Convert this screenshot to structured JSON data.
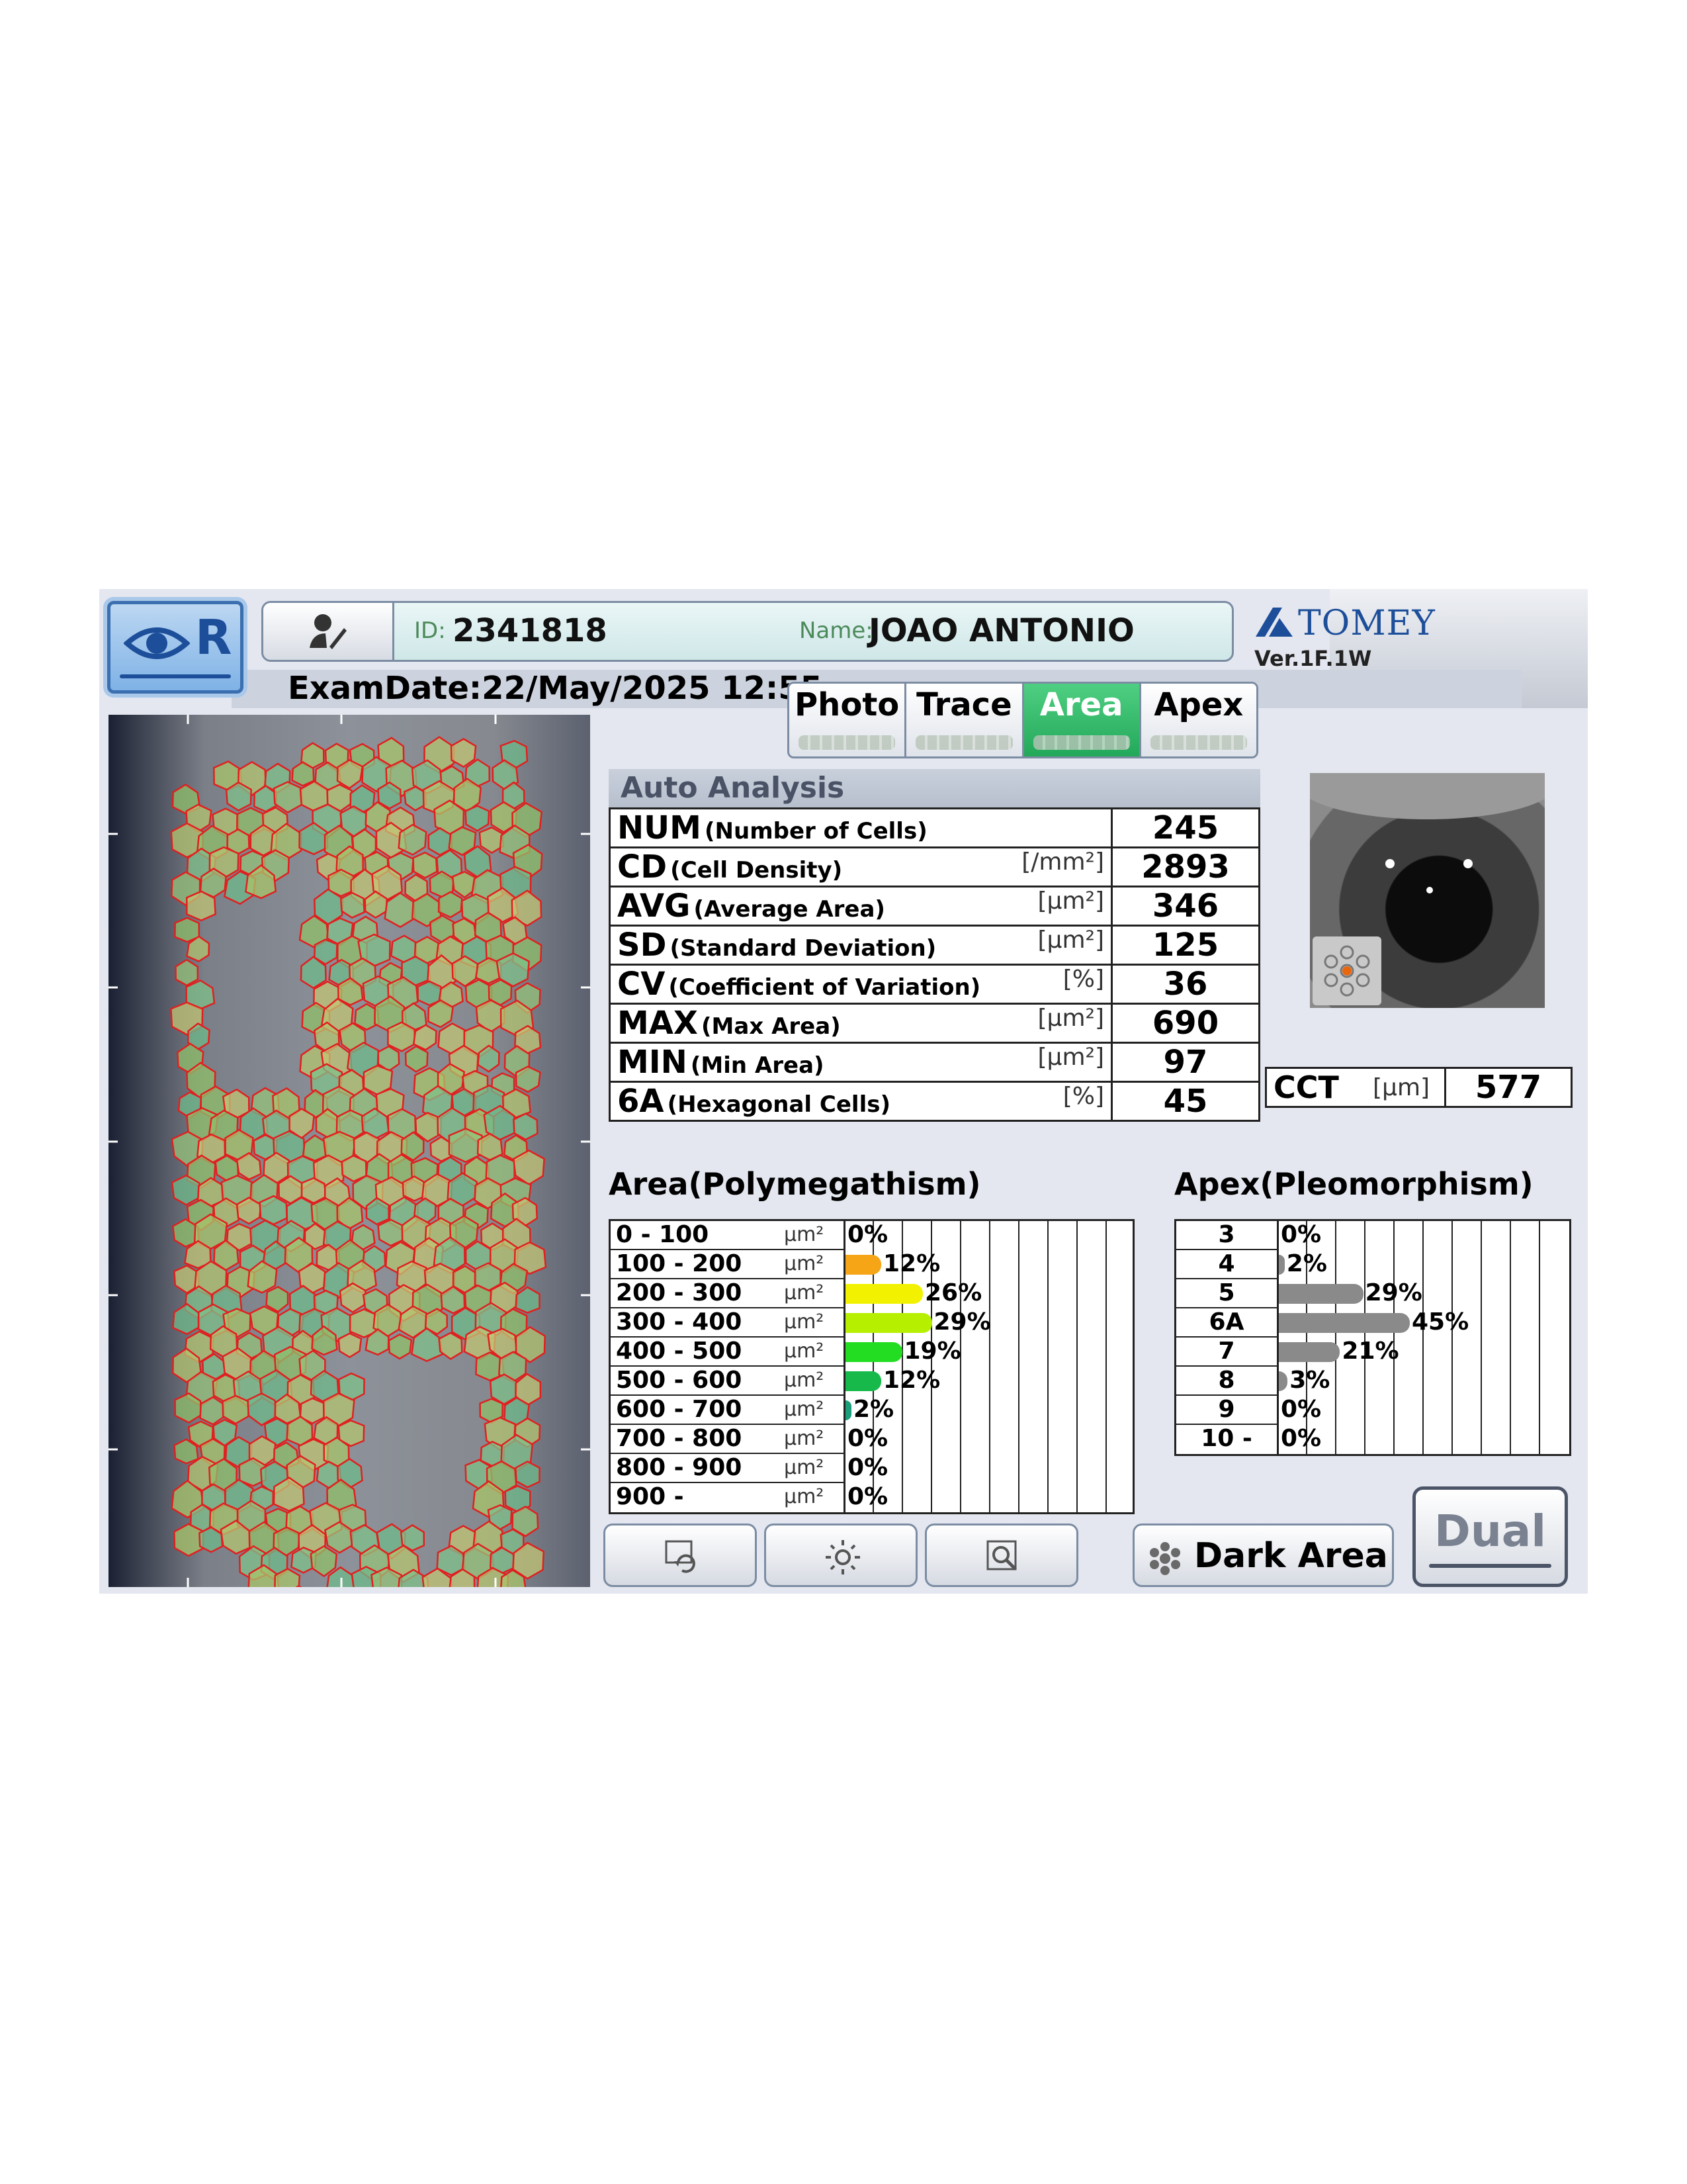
{
  "header": {
    "eye_label": "R",
    "id_label": "ID:",
    "id_value": "2341818",
    "name_label": "Name:",
    "name_value": "JOAO ANTONIO",
    "brand": "TOMEY",
    "version": "Ver.1F.1W",
    "exam_date": "ExamDate:22/May/2025 12:55"
  },
  "tabs": [
    {
      "label": "Photo",
      "active": false
    },
    {
      "label": "Trace",
      "active": false
    },
    {
      "label": "Area",
      "active": true
    },
    {
      "label": "Apex",
      "active": false
    }
  ],
  "auto_analysis": {
    "title": "Auto Analysis",
    "rows": [
      {
        "abbr": "NUM",
        "full": "(Number of Cells)",
        "unit": "",
        "value": "245"
      },
      {
        "abbr": "CD",
        "full": "(Cell Density)",
        "unit": "[/mm²]",
        "value": "2893"
      },
      {
        "abbr": "AVG",
        "full": "(Average Area)",
        "unit": "[μm²]",
        "value": "346"
      },
      {
        "abbr": "SD",
        "full": "(Standard Deviation)",
        "unit": "[μm²]",
        "value": "125"
      },
      {
        "abbr": "CV",
        "full": "(Coefficient of Variation)",
        "unit": "[%]",
        "value": "36"
      },
      {
        "abbr": "MAX",
        "full": "(Max Area)",
        "unit": "[μm²]",
        "value": "690"
      },
      {
        "abbr": "MIN",
        "full": "(Min Area)",
        "unit": "[μm²]",
        "value": "97"
      },
      {
        "abbr": "6A",
        "full": "(Hexagonal Cells)",
        "unit": "[%]",
        "value": "45"
      }
    ]
  },
  "cct": {
    "label": "CCT",
    "unit": "[μm]",
    "value": "577"
  },
  "area_histogram": {
    "title": "Area(Polymegathism)",
    "unit": "μm²",
    "rows": [
      {
        "range": "0 - 100",
        "pct": 0,
        "pct_label": "0%",
        "color": "#f0a020"
      },
      {
        "range": "100 - 200",
        "pct": 12,
        "pct_label": "12%",
        "color": "#f5a516"
      },
      {
        "range": "200 - 300",
        "pct": 26,
        "pct_label": "26%",
        "color": "#f2f200"
      },
      {
        "range": "300 - 400",
        "pct": 29,
        "pct_label": "29%",
        "color": "#b6f000"
      },
      {
        "range": "400 - 500",
        "pct": 19,
        "pct_label": "19%",
        "color": "#22dd22"
      },
      {
        "range": "500 - 600",
        "pct": 12,
        "pct_label": "12%",
        "color": "#16b94a"
      },
      {
        "range": "600 - 700",
        "pct": 2,
        "pct_label": "2%",
        "color": "#1a9f7a"
      },
      {
        "range": "700 - 800",
        "pct": 0,
        "pct_label": "0%",
        "color": "#1a9f7a"
      },
      {
        "range": "800 - 900",
        "pct": 0,
        "pct_label": "0%",
        "color": "#1a9f7a"
      },
      {
        "range": "900 -",
        "pct": 0,
        "pct_label": "0%",
        "color": "#1a9f7a"
      }
    ]
  },
  "apex_histogram": {
    "title": "Apex(Pleomorphism)",
    "rows": [
      {
        "label": "3",
        "pct": 0,
        "pct_label": "0%"
      },
      {
        "label": "4",
        "pct": 2,
        "pct_label": "2%"
      },
      {
        "label": "5",
        "pct": 29,
        "pct_label": "29%"
      },
      {
        "label": "6A",
        "pct": 45,
        "pct_label": "45%"
      },
      {
        "label": "7",
        "pct": 21,
        "pct_label": "21%"
      },
      {
        "label": "8",
        "pct": 3,
        "pct_label": "3%"
      },
      {
        "label": "9",
        "pct": 0,
        "pct_label": "0%"
      },
      {
        "label": "10 -",
        "pct": 0,
        "pct_label": "0%"
      }
    ],
    "bar_color": "#8a8a8a"
  },
  "buttons": {
    "dark_area": "Dark Area",
    "dual": "Dual"
  },
  "icons": [
    "eye-icon",
    "user-edit-icon",
    "tomey-logo-icon",
    "fixation-icon",
    "image-rotate-icon",
    "brightness-icon",
    "zoom-icon",
    "dark-area-icon"
  ]
}
